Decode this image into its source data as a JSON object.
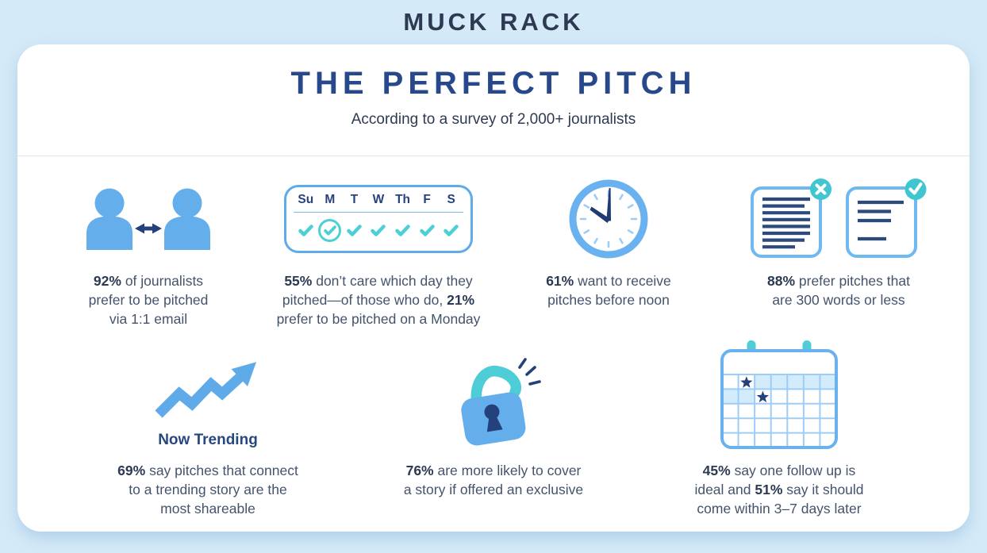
{
  "logo": {
    "text": "MUCK RACK"
  },
  "header": {
    "title": "THE PERFECT PITCH",
    "subtitle": "According to a survey of 2,000+ journalists"
  },
  "week": {
    "days": [
      "Su",
      "M",
      "T",
      "W",
      "Th",
      "F",
      "S"
    ],
    "circled_day": "M"
  },
  "stats": {
    "email": {
      "icon": "two-people-double-arrow-icon",
      "lines": [
        [
          {
            "t": "92%",
            "b": true
          },
          {
            "t": " of journalists"
          }
        ],
        [
          {
            "t": "prefer to be pitched"
          }
        ],
        [
          {
            "t": "via 1:1 email"
          }
        ]
      ]
    },
    "day": {
      "icon": "week-calendar-checkmarks-icon",
      "lines": [
        [
          {
            "t": "55%",
            "b": true
          },
          {
            "t": " don’t care which day they"
          }
        ],
        [
          {
            "t": "pitched—of those who do, "
          },
          {
            "t": "21%",
            "b": true
          }
        ],
        [
          {
            "t": "prefer to be pitched on a Monday"
          }
        ]
      ]
    },
    "noon": {
      "icon": "clock-icon",
      "lines": [
        [
          {
            "t": "61%",
            "b": true
          },
          {
            "t": " want to receive"
          }
        ],
        [
          {
            "t": "pitches before noon"
          }
        ]
      ]
    },
    "words": {
      "icon": "two-documents-x-check-icon",
      "lines": [
        [
          {
            "t": "88%",
            "b": true
          },
          {
            "t": " prefer pitches that"
          }
        ],
        [
          {
            "t": "are 300 words or less"
          }
        ]
      ]
    },
    "trending": {
      "icon": "trending-arrow-icon",
      "label": "Now Trending",
      "lines": [
        [
          {
            "t": "69%",
            "b": true
          },
          {
            "t": " say pitches that connect"
          }
        ],
        [
          {
            "t": "to a trending story are the"
          }
        ],
        [
          {
            "t": "most shareable"
          }
        ]
      ]
    },
    "exclusive": {
      "icon": "open-padlock-icon",
      "lines": [
        [
          {
            "t": "76%",
            "b": true
          },
          {
            "t": " are more likely to cover"
          }
        ],
        [
          {
            "t": "a story if offered an exclusive"
          }
        ]
      ]
    },
    "followup": {
      "icon": "calendar-stars-icon",
      "lines": [
        [
          {
            "t": "45%",
            "b": true
          },
          {
            "t": " say one follow up is"
          }
        ],
        [
          {
            "t": "ideal and "
          },
          {
            "t": "51%",
            "b": true
          },
          {
            "t": " say it should"
          }
        ],
        [
          {
            "t": "come within 3–7 days later"
          }
        ]
      ]
    }
  },
  "colors": {
    "background": "#d4eaf8",
    "card": "#ffffff",
    "navy_dark": "#2e3a52",
    "title_blue": "#27498b",
    "body_text": "#44536c",
    "icon_blue": "#64aeec",
    "icon_blue_light": "#9dcdf6",
    "icon_border_blue": "#6ab1f0",
    "accent_navy": "#25417c",
    "teal": "#4ccfd6",
    "calendar_cell_tint": "#d3ecfb",
    "divider": "#e4e4ef"
  }
}
